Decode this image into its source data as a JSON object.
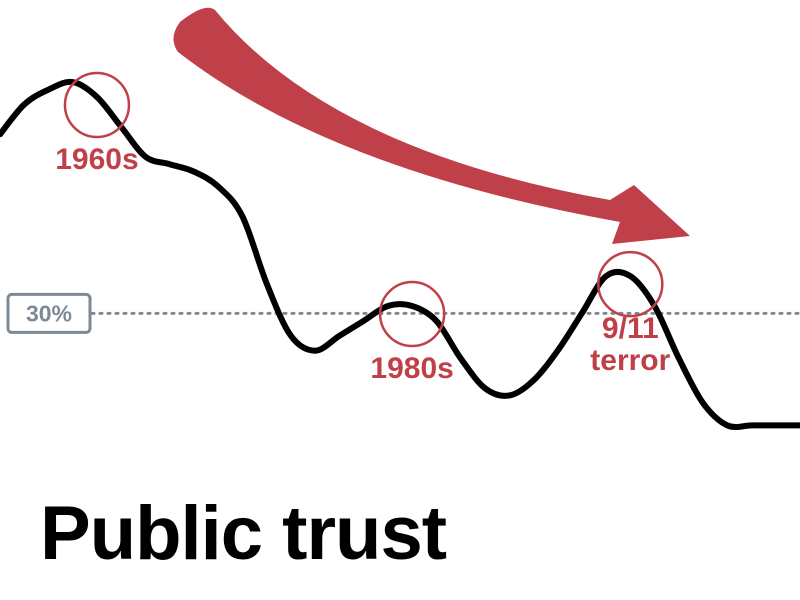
{
  "title": "Public trust",
  "chart_data": {
    "type": "line",
    "title": "Public trust",
    "xlabel": "",
    "ylabel": "",
    "reference_line": {
      "label": "30%",
      "value": 30
    },
    "ylim": [
      5,
      72
    ],
    "series": [
      {
        "values": [
          54,
          58,
          60,
          61,
          59,
          55,
          51,
          50,
          49,
          47,
          43,
          34,
          27,
          25,
          27,
          29,
          31,
          31,
          29,
          24,
          20,
          19,
          21,
          25,
          30,
          35,
          35,
          31,
          24,
          18,
          15,
          15,
          15,
          15
        ]
      }
    ],
    "annotations": [
      {
        "label": "1960s",
        "point_index": 4
      },
      {
        "label": "1980s",
        "point_index": 17
      },
      {
        "label": "9/11\nterror",
        "point_index": 26
      }
    ],
    "trend_arrow": "downward",
    "colors": {
      "line": "#000000",
      "accent": "#c0404a",
      "reference": "#7d8a95"
    }
  }
}
